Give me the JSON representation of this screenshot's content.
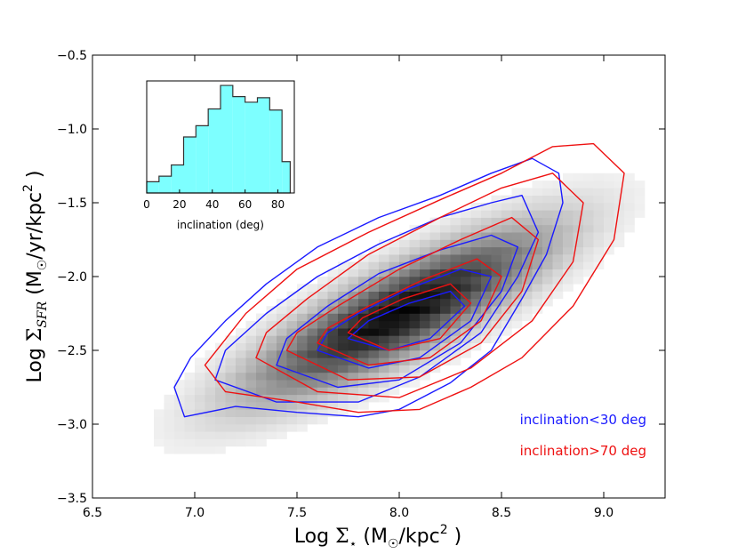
{
  "chart_data": [
    {
      "type": "heatmap",
      "description_role": "main density plot with contours",
      "xlabel": "Log Σ⋆ (M☉/kpc² )",
      "xlabel_parts": {
        "prefix": "Log ",
        "sym": "Σ",
        "sub": "⋆",
        "unit_open": " (M",
        "sun": "☉",
        "unit_mid": "/kpc",
        "sup": "2",
        "unit_close": " )"
      },
      "ylabel": "Log ΣSFR (M☉/yr/kpc² )",
      "ylabel_parts": {
        "prefix": "Log ",
        "sym": "Σ",
        "sub": "SFR",
        "unit_open": " (M",
        "sun": "☉",
        "unit_mid": "/yr/kpc",
        "sup": "2",
        "unit_close": " )"
      },
      "xlim": [
        6.5,
        9.3
      ],
      "ylim": [
        -3.5,
        -0.5
      ],
      "xticks": [
        6.5,
        7.0,
        7.5,
        8.0,
        8.5,
        9.0
      ],
      "xtick_labels": [
        "6.5",
        "7.0",
        "7.5",
        "8.0",
        "8.5",
        "9.0"
      ],
      "yticks": [
        -0.5,
        -1.0,
        -1.5,
        -2.0,
        -2.5,
        -3.0,
        -3.5
      ],
      "ytick_labels": [
        "−0.5",
        "−1.0",
        "−1.5",
        "−2.0",
        "−2.5",
        "−3.0",
        "−3.5"
      ],
      "density": {
        "center": [
          8.0,
          -2.25
        ],
        "slope": 0.75,
        "sigma_along": 0.55,
        "sigma_across": 0.16,
        "bin_size": 0.05
      },
      "series": [
        {
          "name": "inclination<30 deg",
          "color": "#1a1aff",
          "contours": [
            [
              [
                6.9,
                -2.75
              ],
              [
                6.95,
                -2.95
              ],
              [
                7.2,
                -2.88
              ],
              [
                7.5,
                -2.92
              ],
              [
                7.8,
                -2.95
              ],
              [
                8.0,
                -2.9
              ],
              [
                8.25,
                -2.72
              ],
              [
                8.45,
                -2.5
              ],
              [
                8.6,
                -2.15
              ],
              [
                8.72,
                -1.85
              ],
              [
                8.8,
                -1.5
              ],
              [
                8.78,
                -1.3
              ],
              [
                8.65,
                -1.2
              ],
              [
                8.45,
                -1.3
              ],
              [
                8.2,
                -1.45
              ],
              [
                7.9,
                -1.6
              ],
              [
                7.6,
                -1.8
              ],
              [
                7.35,
                -2.05
              ],
              [
                7.15,
                -2.3
              ],
              [
                6.98,
                -2.55
              ]
            ],
            [
              [
                7.1,
                -2.7
              ],
              [
                7.4,
                -2.85
              ],
              [
                7.8,
                -2.85
              ],
              [
                8.1,
                -2.68
              ],
              [
                8.4,
                -2.38
              ],
              [
                8.58,
                -2.0
              ],
              [
                8.68,
                -1.7
              ],
              [
                8.6,
                -1.45
              ],
              [
                8.45,
                -1.5
              ],
              [
                8.2,
                -1.6
              ],
              [
                7.9,
                -1.78
              ],
              [
                7.6,
                -2.0
              ],
              [
                7.35,
                -2.25
              ],
              [
                7.15,
                -2.5
              ]
            ],
            [
              [
                7.4,
                -2.6
              ],
              [
                7.7,
                -2.75
              ],
              [
                8.0,
                -2.7
              ],
              [
                8.3,
                -2.45
              ],
              [
                8.5,
                -2.1
              ],
              [
                8.58,
                -1.8
              ],
              [
                8.45,
                -1.72
              ],
              [
                8.2,
                -1.82
              ],
              [
                7.9,
                -1.98
              ],
              [
                7.65,
                -2.2
              ],
              [
                7.45,
                -2.42
              ]
            ],
            [
              [
                7.6,
                -2.5
              ],
              [
                7.85,
                -2.62
              ],
              [
                8.1,
                -2.55
              ],
              [
                8.35,
                -2.3
              ],
              [
                8.45,
                -2.0
              ],
              [
                8.3,
                -1.95
              ],
              [
                8.05,
                -2.08
              ],
              [
                7.8,
                -2.25
              ],
              [
                7.65,
                -2.38
              ]
            ],
            [
              [
                7.75,
                -2.42
              ],
              [
                7.95,
                -2.5
              ],
              [
                8.15,
                -2.42
              ],
              [
                8.32,
                -2.2
              ],
              [
                8.25,
                -2.1
              ],
              [
                8.05,
                -2.18
              ],
              [
                7.85,
                -2.3
              ]
            ]
          ]
        },
        {
          "name": "inclination>70 deg",
          "color": "#ee1111",
          "contours": [
            [
              [
                7.05,
                -2.6
              ],
              [
                7.15,
                -2.78
              ],
              [
                7.5,
                -2.85
              ],
              [
                7.8,
                -2.92
              ],
              [
                8.1,
                -2.9
              ],
              [
                8.35,
                -2.75
              ],
              [
                8.6,
                -2.55
              ],
              [
                8.85,
                -2.2
              ],
              [
                9.05,
                -1.75
              ],
              [
                9.1,
                -1.3
              ],
              [
                8.95,
                -1.1
              ],
              [
                8.75,
                -1.12
              ],
              [
                8.5,
                -1.3
              ],
              [
                8.2,
                -1.48
              ],
              [
                7.85,
                -1.7
              ],
              [
                7.5,
                -1.95
              ],
              [
                7.25,
                -2.25
              ]
            ],
            [
              [
                7.3,
                -2.55
              ],
              [
                7.6,
                -2.78
              ],
              [
                8.0,
                -2.82
              ],
              [
                8.35,
                -2.62
              ],
              [
                8.65,
                -2.3
              ],
              [
                8.85,
                -1.9
              ],
              [
                8.9,
                -1.5
              ],
              [
                8.75,
                -1.3
              ],
              [
                8.5,
                -1.4
              ],
              [
                8.2,
                -1.6
              ],
              [
                7.85,
                -1.85
              ],
              [
                7.55,
                -2.15
              ],
              [
                7.35,
                -2.38
              ]
            ],
            [
              [
                7.45,
                -2.5
              ],
              [
                7.75,
                -2.7
              ],
              [
                8.1,
                -2.68
              ],
              [
                8.4,
                -2.45
              ],
              [
                8.6,
                -2.1
              ],
              [
                8.68,
                -1.75
              ],
              [
                8.55,
                -1.6
              ],
              [
                8.3,
                -1.75
              ],
              [
                8.0,
                -1.95
              ],
              [
                7.7,
                -2.2
              ],
              [
                7.5,
                -2.38
              ]
            ],
            [
              [
                7.6,
                -2.45
              ],
              [
                7.85,
                -2.6
              ],
              [
                8.15,
                -2.55
              ],
              [
                8.4,
                -2.3
              ],
              [
                8.5,
                -2.0
              ],
              [
                8.38,
                -1.88
              ],
              [
                8.12,
                -2.02
              ],
              [
                7.85,
                -2.2
              ],
              [
                7.65,
                -2.35
              ]
            ],
            [
              [
                7.75,
                -2.38
              ],
              [
                7.95,
                -2.5
              ],
              [
                8.2,
                -2.42
              ],
              [
                8.35,
                -2.18
              ],
              [
                8.25,
                -2.05
              ],
              [
                8.02,
                -2.15
              ],
              [
                7.82,
                -2.28
              ]
            ]
          ]
        }
      ],
      "legend": {
        "placement": "bottom-right",
        "entries": [
          "inclination<30 deg",
          "inclination>70 deg"
        ]
      }
    },
    {
      "type": "bar",
      "description_role": "inset histogram",
      "xlabel": "inclination (deg)",
      "xlim": [
        0,
        90
      ],
      "ylim": [
        0,
        1
      ],
      "xticks": [
        0,
        20,
        40,
        60,
        80
      ],
      "xtick_labels": [
        "0",
        "20",
        "40",
        "60",
        "80"
      ],
      "bin_edges": [
        0,
        7.5,
        15,
        22.5,
        30,
        37.5,
        45,
        52.5,
        60,
        67.5,
        75,
        82.5,
        87.5
      ],
      "values": [
        0.1,
        0.15,
        0.25,
        0.5,
        0.6,
        0.75,
        0.96,
        0.86,
        0.81,
        0.85,
        0.74,
        0.28
      ],
      "fill_color": "#7dffff",
      "edge_color": "#333333"
    }
  ]
}
